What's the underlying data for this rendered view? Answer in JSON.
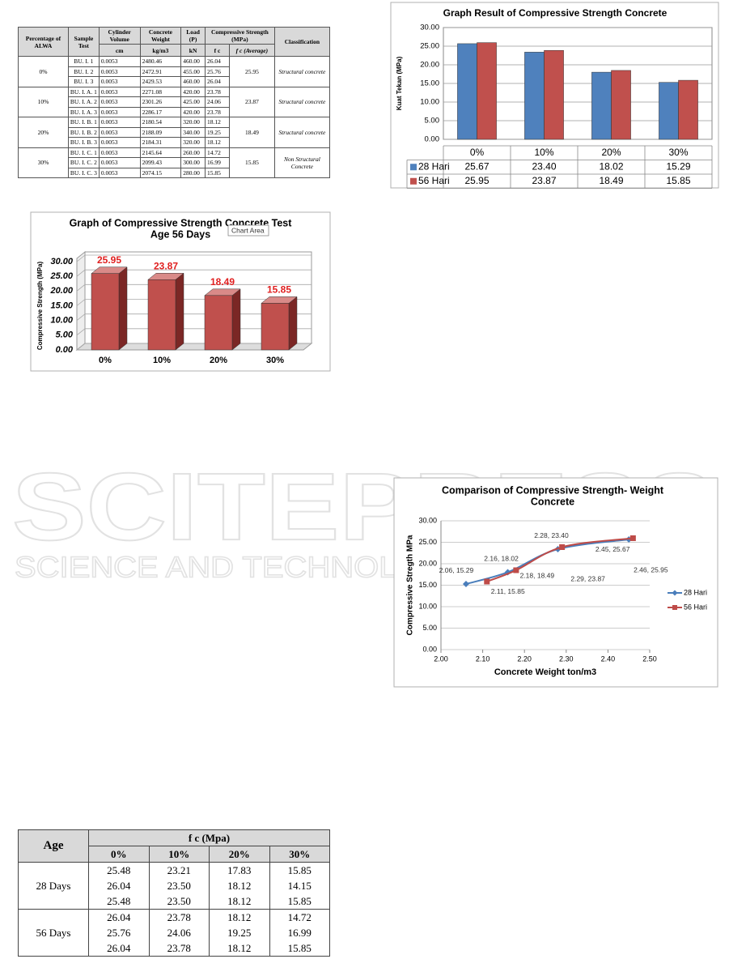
{
  "table1": {
    "header": [
      "Percentage of ALWA",
      "Sample Test",
      "Cylinder Volume",
      "Concrete Weight",
      "Load (P)",
      "Compressive Strength (MPa)",
      "Classification"
    ],
    "subheader": [
      "cm",
      "kg/m3",
      "kN",
      "f c",
      "f c (Average)"
    ],
    "groups": [
      {
        "label": "0%",
        "average": "25.95",
        "classification": "Structural concrete",
        "rows": [
          [
            "BU. I. 1",
            "0.0053",
            "2480.46",
            "460.00",
            "26.04"
          ],
          [
            "BU. I. 2",
            "0.0053",
            "2472.91",
            "455.00",
            "25.76"
          ],
          [
            "BU. I. 3",
            "0.0053",
            "2429.53",
            "460.00",
            "26.04"
          ]
        ]
      },
      {
        "label": "10%",
        "average": "23.87",
        "classification": "Structural concrete",
        "rows": [
          [
            "BU. I. A. 1",
            "0.0053",
            "2271.08",
            "420.00",
            "23.78"
          ],
          [
            "BU. I. A. 2",
            "0.0053",
            "2301.26",
            "425.00",
            "24.06"
          ],
          [
            "BU. I. A. 3",
            "0.0053",
            "2286.17",
            "420.00",
            "23.78"
          ]
        ]
      },
      {
        "label": "20%",
        "average": "18.49",
        "classification": "Structural concrete",
        "rows": [
          [
            "BU. I. B. 1",
            "0.0053",
            "2180.54",
            "320.00",
            "18.12"
          ],
          [
            "BU. I. B. 2",
            "0.0053",
            "2188.09",
            "340.00",
            "19.25"
          ],
          [
            "BU. I. B. 3",
            "0.0053",
            "2184.31",
            "320.00",
            "18.12"
          ]
        ]
      },
      {
        "label": "30%",
        "average": "15.85",
        "classification": "Non Structural Concrete",
        "rows": [
          [
            "BU. I. C. 1",
            "0.0053",
            "2145.64",
            "260.00",
            "14.72"
          ],
          [
            "BU. I. C. 2",
            "0.0053",
            "2099.43",
            "300.00",
            "16.99"
          ],
          [
            "BU. I. C. 3",
            "0.0053",
            "2074.15",
            "280.00",
            "15.85"
          ]
        ]
      }
    ]
  },
  "chart_data": [
    {
      "type": "bar",
      "3d": true,
      "title": "Graph of Compressive Strength Concrete Test",
      "subtitle": "Age 56 Days",
      "tooltip": "Chart Area",
      "y_label": "Compressive Strength (MPa)",
      "categories": [
        "0%",
        "10%",
        "20%",
        "30%"
      ],
      "values": [
        25.95,
        23.87,
        18.49,
        15.85
      ],
      "color": "#c0504d",
      "ylim": [
        0,
        30
      ],
      "yticks": [
        {
          "value": 0,
          "label": "0.00"
        },
        {
          "value": 5,
          "label": "5.00"
        },
        {
          "value": 10,
          "label": "10.00"
        },
        {
          "value": 15,
          "label": "15.00"
        },
        {
          "value": 20,
          "label": "20.00"
        },
        {
          "value": 25,
          "label": "25.00"
        },
        {
          "value": 30,
          "label": "30.00"
        }
      ],
      "grid": true
    },
    {
      "type": "bar",
      "title": "Graph  Result of Compressive Strength  Concrete",
      "y_label": "Kuat Tekan (MPa)",
      "categories": [
        "0%",
        "10%",
        "20%",
        "30%"
      ],
      "series": [
        {
          "name": "28 Hari",
          "color": "#4f81bd",
          "values": [
            25.67,
            23.4,
            18.02,
            15.29
          ],
          "value_labels": [
            "25.67",
            "23.40",
            "18.02",
            "15.29"
          ]
        },
        {
          "name": "56 Hari",
          "color": "#c0504d",
          "values": [
            25.95,
            23.87,
            18.49,
            15.85
          ],
          "value_labels": [
            "25.95",
            "23.87",
            "18.49",
            "15.85"
          ]
        }
      ],
      "ylim": [
        0,
        30
      ],
      "yticks": [
        {
          "value": 0,
          "label": "0.00"
        },
        {
          "value": 5,
          "label": "5.00"
        },
        {
          "value": 10,
          "label": "10.00"
        },
        {
          "value": 15,
          "label": "15.00"
        },
        {
          "value": 20,
          "label": "20.00"
        },
        {
          "value": 25,
          "label": "25.00"
        },
        {
          "value": 30,
          "label": "30.00"
        }
      ],
      "grid": true,
      "data_table": true
    },
    {
      "type": "line",
      "title": "Comparison of Compressive Strength- Weight",
      "subtitle": "Concrete",
      "x_label": "Concrete Weight ton/m3",
      "y_label": "Compressive Stregth MPa",
      "series": [
        {
          "name": "28 Hari",
          "color": "#4a7ebb",
          "marker": "diamond",
          "x": [
            2.06,
            2.16,
            2.28,
            2.45
          ],
          "values": [
            15.29,
            18.02,
            23.4,
            25.67
          ],
          "value_labels": [
            "2.06, 15.29",
            "2.16, 18.02",
            "2.28, 23.40",
            "2.45, 25.67"
          ]
        },
        {
          "name": "56 Hari",
          "color": "#be4b48",
          "marker": "square",
          "x": [
            2.11,
            2.18,
            2.29,
            2.46
          ],
          "values": [
            15.85,
            18.49,
            23.87,
            25.95
          ],
          "value_labels": [
            "2.11, 15.85",
            "2.18, 18.49",
            "2.29, 23.87",
            "2.46, 25.95"
          ]
        }
      ],
      "xlim": [
        2.0,
        2.5
      ],
      "xticks": [
        {
          "value": 2.0,
          "label": "2.00"
        },
        {
          "value": 2.1,
          "label": "2.10"
        },
        {
          "value": 2.2,
          "label": "2.20"
        },
        {
          "value": 2.3,
          "label": "2.30"
        },
        {
          "value": 2.4,
          "label": "2.40"
        },
        {
          "value": 2.5,
          "label": "2.50"
        }
      ],
      "ylim": [
        0,
        30
      ],
      "yticks": [
        {
          "value": 0,
          "label": "0.00"
        },
        {
          "value": 5,
          "label": "5.00"
        },
        {
          "value": 10,
          "label": "10.00"
        },
        {
          "value": 15,
          "label": "15.00"
        },
        {
          "value": 20,
          "label": "20.00"
        },
        {
          "value": 25,
          "label": "25.00"
        },
        {
          "value": 30,
          "label": "30.00"
        }
      ],
      "grid": true,
      "legend": "right"
    }
  ],
  "table2": {
    "header": [
      "Age",
      "f c (Mpa)"
    ],
    "subheader": [
      "0%",
      "10%",
      "20%",
      "30%"
    ],
    "groups": [
      {
        "label": "28 Days",
        "rows": [
          [
            "25.48",
            "23.21",
            "17.83",
            "15.85"
          ],
          [
            "26.04",
            "23.50",
            "18.12",
            "14.15"
          ],
          [
            "25.48",
            "23.50",
            "18.12",
            "15.85"
          ]
        ]
      },
      {
        "label": "56 Days",
        "rows": [
          [
            "26.04",
            "23.78",
            "18.12",
            "14.72"
          ],
          [
            "25.76",
            "24.06",
            "19.25",
            "16.99"
          ],
          [
            "26.04",
            "23.78",
            "18.12",
            "15.85"
          ]
        ]
      }
    ]
  },
  "watermark": {
    "brand": "SCITEPRESS",
    "tagline": "SCIENCE AND TECHNOLOGY PUBLICATIONS"
  }
}
